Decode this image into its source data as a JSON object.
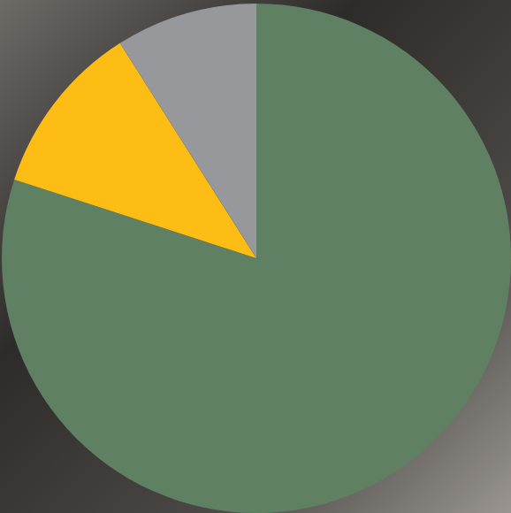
{
  "chart_data": {
    "type": "pie",
    "values": [
      80,
      11,
      9
    ],
    "colors": [
      "#5f8062",
      "#fdbd14",
      "#97989b"
    ]
  }
}
